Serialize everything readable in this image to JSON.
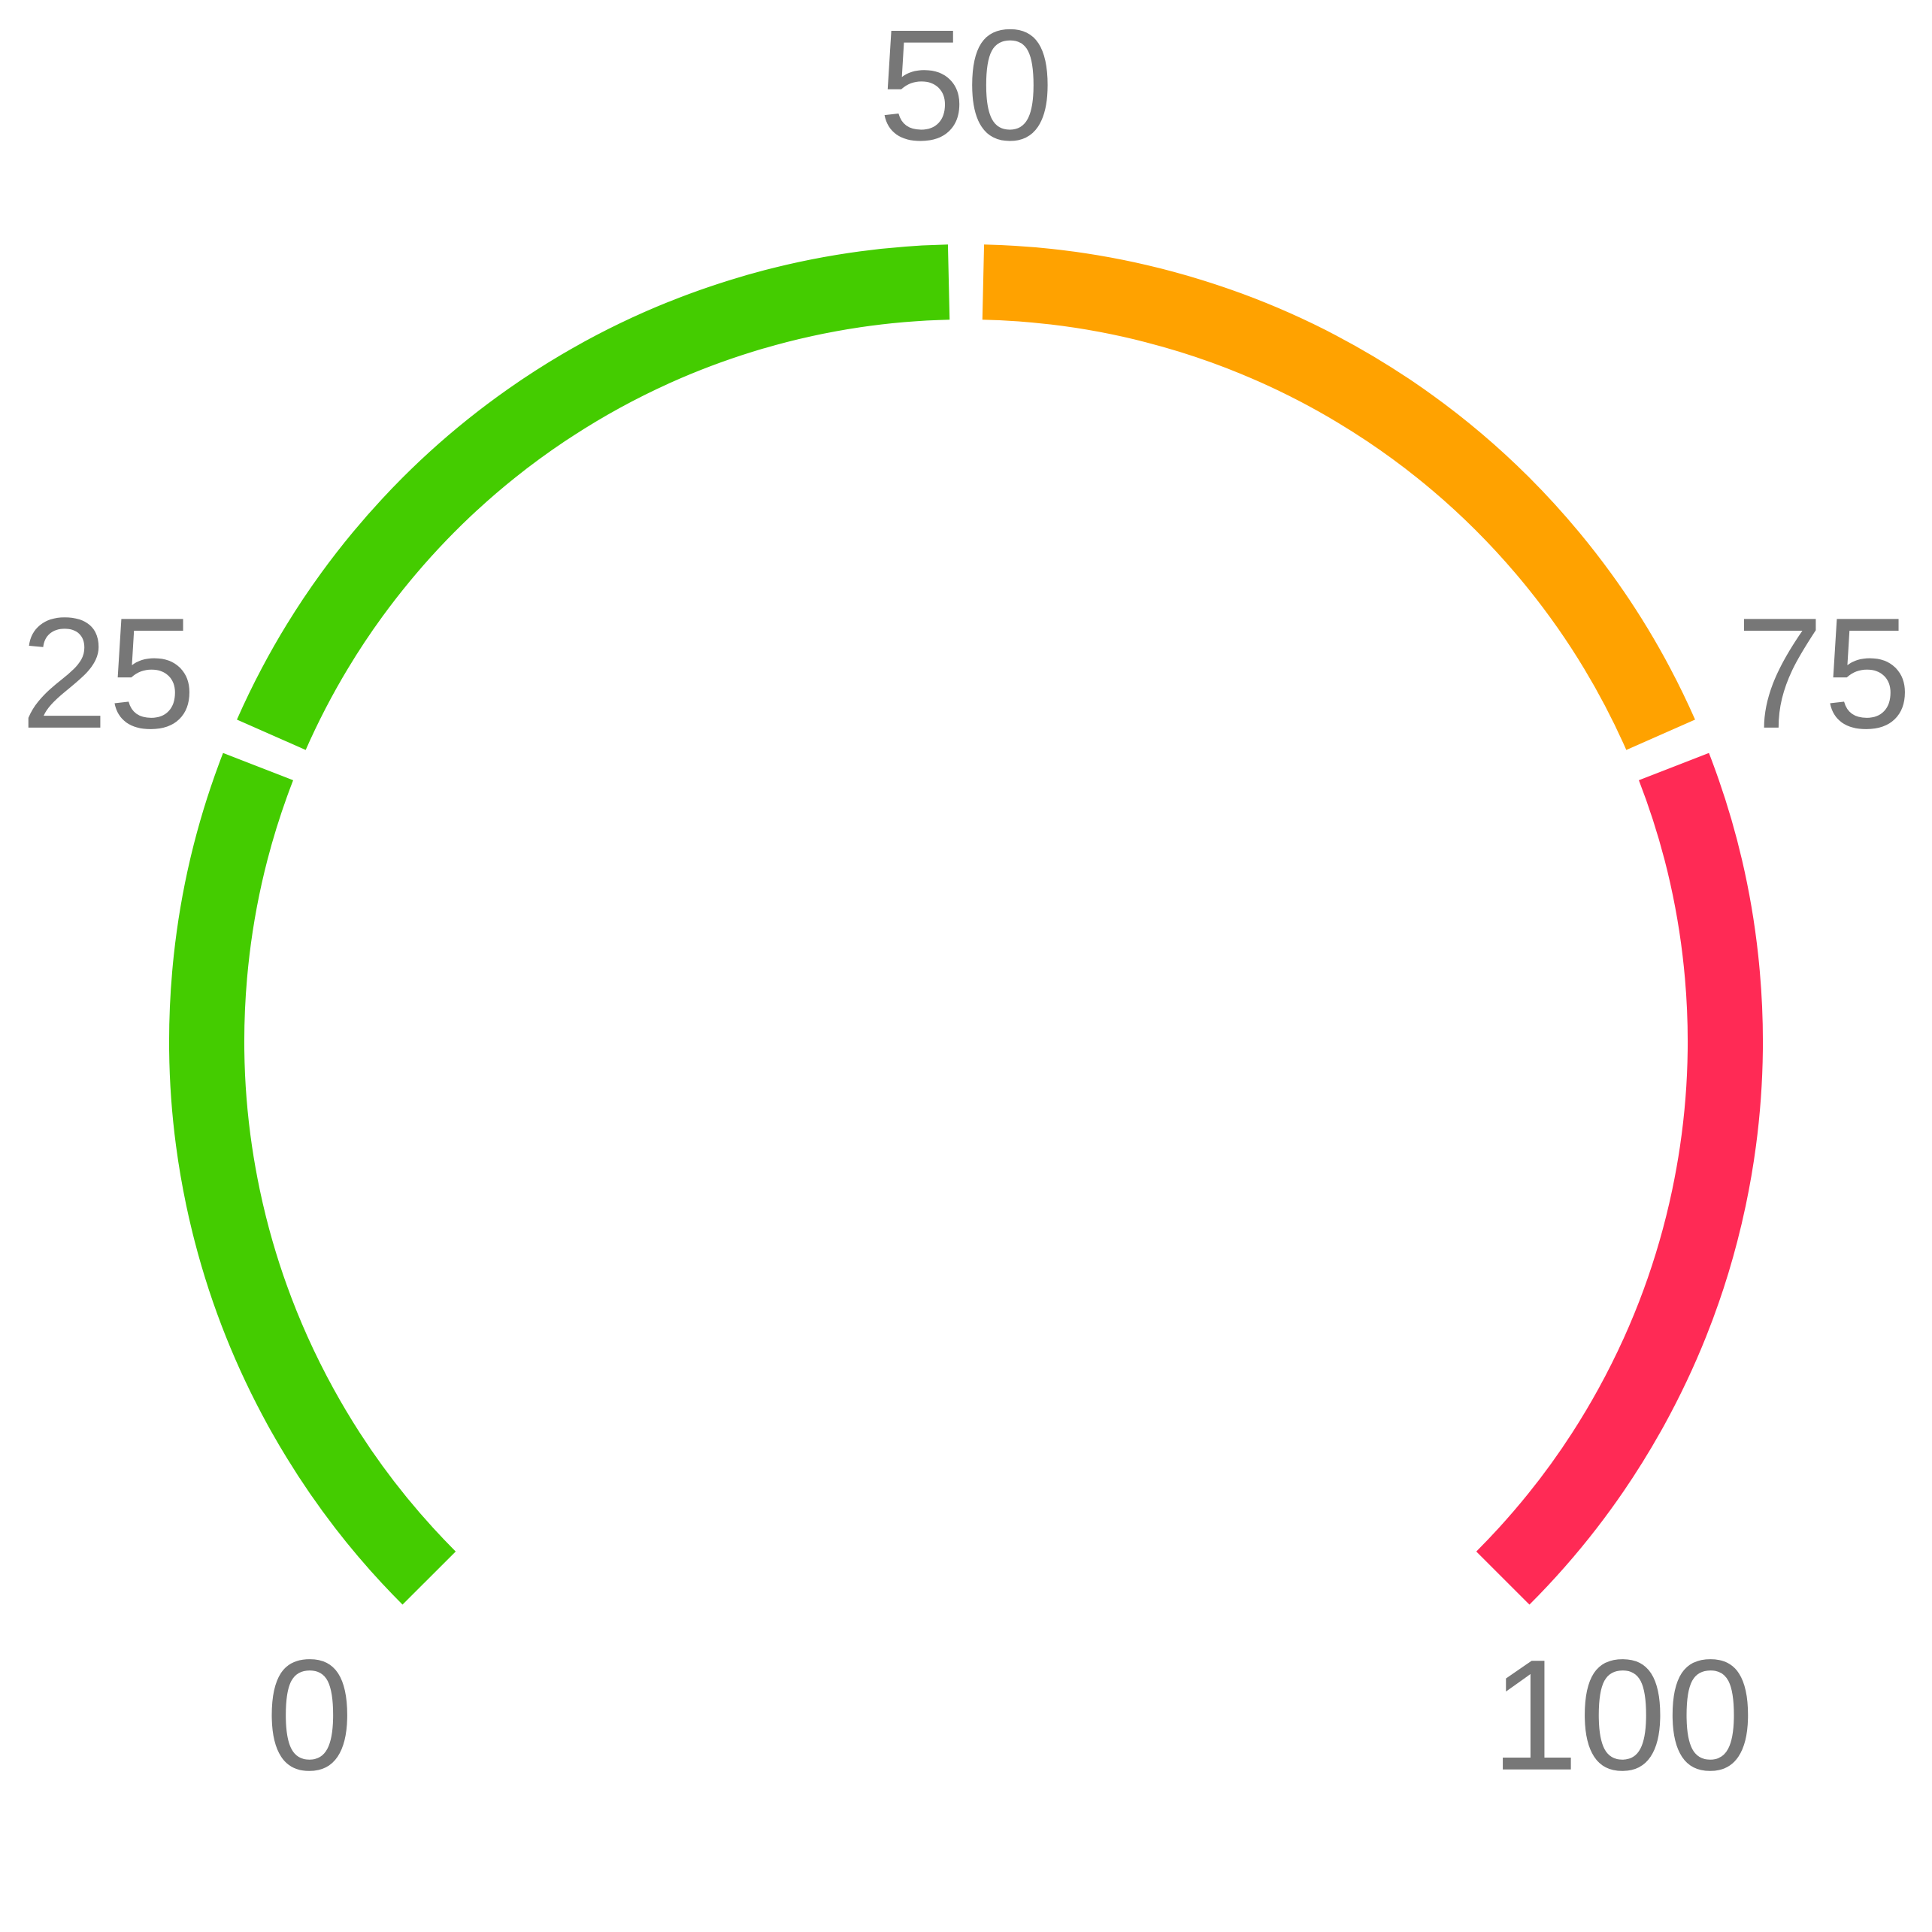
{
  "chart_data": {
    "type": "gauge",
    "min": 0,
    "max": 100,
    "start_angle_deg": -135,
    "end_angle_deg": 135,
    "bands": [
      {
        "name": "band-green-low",
        "from": 0,
        "to": 25,
        "color": "#44cc00"
      },
      {
        "name": "band-green-high",
        "from": 25,
        "to": 50,
        "color": "#44cc00"
      },
      {
        "name": "band-orange",
        "from": 50,
        "to": 75,
        "color": "#ffa200"
      },
      {
        "name": "band-red",
        "from": 75,
        "to": 100,
        "color": "#ff2a55"
      }
    ],
    "ticks": [
      {
        "value": 0,
        "label": "0"
      },
      {
        "value": 25,
        "label": "25"
      },
      {
        "value": 50,
        "label": "50"
      },
      {
        "value": 75,
        "label": "75"
      },
      {
        "value": 100,
        "label": "100"
      }
    ],
    "label_color": "#777777",
    "background": "#ffffff"
  }
}
